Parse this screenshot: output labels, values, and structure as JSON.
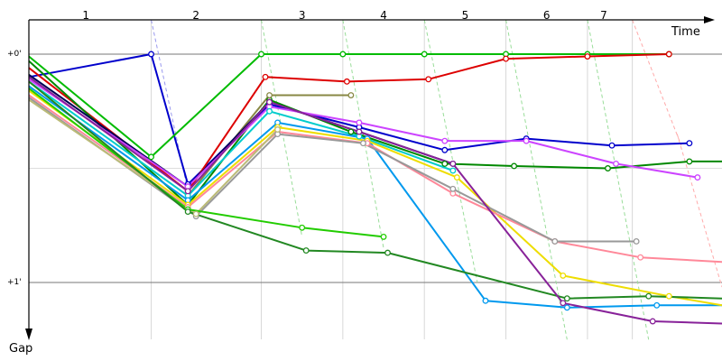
{
  "chart_data": {
    "type": "line",
    "xlabel": "Time",
    "ylabel": "Gap",
    "lap_labels": [
      "1",
      "2",
      "3",
      "4",
      "5",
      "6",
      "7"
    ],
    "y_tick_labels": [
      "+0'",
      "+1'"
    ],
    "y_ticks": [
      0,
      1
    ],
    "ylim": [
      -0.08,
      1.25
    ],
    "xlim": [
      0,
      8.5
    ],
    "grid": true,
    "lap_line_positions": [
      1.5,
      2.85,
      3.85,
      4.85,
      5.85,
      6.85,
      7.4
    ],
    "series": [
      {
        "color": "#0000cc",
        "points": [
          [
            0,
            0.1
          ],
          [
            1.5,
            0
          ],
          [
            1.95,
            0.57
          ],
          [
            2.95,
            0.22
          ],
          [
            4.05,
            0.32
          ],
          [
            5.1,
            0.42
          ],
          [
            6.1,
            0.37
          ],
          [
            7.15,
            0.4
          ],
          [
            8.1,
            0.39
          ]
        ]
      },
      {
        "color": "#00bb00",
        "points": [
          [
            0,
            0.01
          ],
          [
            1.5,
            0.45
          ],
          [
            2.85,
            0
          ],
          [
            3.85,
            0
          ],
          [
            4.85,
            0
          ],
          [
            5.85,
            0
          ],
          [
            6.85,
            0
          ],
          [
            7.85,
            0
          ]
        ]
      },
      {
        "color": "#dd0000",
        "points": [
          [
            0,
            0.06
          ],
          [
            1.95,
            0.6
          ],
          [
            2.9,
            0.1
          ],
          [
            3.9,
            0.12
          ],
          [
            4.9,
            0.11
          ],
          [
            5.85,
            0.02
          ],
          [
            6.85,
            0.01
          ],
          [
            7.85,
            0
          ]
        ]
      },
      {
        "color": "#008800",
        "points": [
          [
            0,
            0.03
          ],
          [
            1.95,
            0.66
          ],
          [
            2.95,
            0.2
          ],
          [
            3.95,
            0.34
          ],
          [
            5.1,
            0.48
          ],
          [
            5.95,
            0.49
          ],
          [
            7.1,
            0.5
          ],
          [
            8.1,
            0.47
          ],
          [
            8.5,
            0.47
          ]
        ]
      },
      {
        "color": "#888844",
        "points": [
          [
            1.95,
            0.62
          ],
          [
            2.95,
            0.18
          ],
          [
            3.95,
            0.18
          ]
        ]
      },
      {
        "color": "#000055",
        "points": [
          [
            0,
            0.09
          ],
          [
            1.95,
            0.58
          ],
          [
            2.95,
            0.21
          ],
          [
            4.05,
            0.34
          ],
          [
            5.2,
            0.48
          ]
        ]
      },
      {
        "color": "#cc44ff",
        "points": [
          [
            0,
            0.11
          ],
          [
            1.95,
            0.58
          ],
          [
            2.95,
            0.23
          ],
          [
            4.05,
            0.3
          ],
          [
            5.1,
            0.38
          ],
          [
            6.1,
            0.38
          ],
          [
            7.2,
            0.48
          ],
          [
            8.2,
            0.54
          ]
        ]
      },
      {
        "color": "#00cccc",
        "points": [
          [
            0,
            0.12
          ],
          [
            1.95,
            0.62
          ],
          [
            2.95,
            0.25
          ],
          [
            4.05,
            0.36
          ],
          [
            5.2,
            0.51
          ]
        ]
      },
      {
        "color": "#0099ee",
        "points": [
          [
            0,
            0.14
          ],
          [
            1.95,
            0.64
          ],
          [
            3.05,
            0.3
          ],
          [
            4.15,
            0.37
          ],
          [
            5.6,
            1.08
          ],
          [
            6.6,
            1.11
          ],
          [
            7.7,
            1.1
          ],
          [
            8.5,
            1.1
          ]
        ]
      },
      {
        "color": "#eedd00",
        "points": [
          [
            0,
            0.16
          ],
          [
            1.95,
            0.66
          ],
          [
            3.05,
            0.32
          ],
          [
            4.15,
            0.38
          ],
          [
            5.25,
            0.54
          ],
          [
            6.55,
            0.97
          ],
          [
            7.85,
            1.06
          ],
          [
            8.5,
            1.1
          ]
        ]
      },
      {
        "color": "#ff8899",
        "points": [
          [
            0,
            0.18
          ],
          [
            1.95,
            0.67
          ],
          [
            3.05,
            0.34
          ],
          [
            4.15,
            0.39
          ],
          [
            5.2,
            0.61
          ],
          [
            6.45,
            0.82
          ],
          [
            7.5,
            0.89
          ],
          [
            8.5,
            0.91
          ]
        ]
      },
      {
        "color": "#999999",
        "points": [
          [
            0,
            0.19
          ],
          [
            2.05,
            0.71
          ],
          [
            3.05,
            0.35
          ],
          [
            4.1,
            0.39
          ],
          [
            5.2,
            0.59
          ],
          [
            6.45,
            0.82
          ],
          [
            7.45,
            0.82
          ]
        ]
      },
      {
        "color": "#bbbb77",
        "points": [
          [
            0,
            0.2
          ],
          [
            2.05,
            0.7
          ],
          [
            3.05,
            0.33
          ]
        ]
      },
      {
        "color": "#22cc00",
        "points": [
          [
            0,
            0.15
          ],
          [
            1.95,
            0.68
          ],
          [
            3.35,
            0.76
          ],
          [
            4.35,
            0.8
          ]
        ]
      },
      {
        "color": "#228822",
        "points": [
          [
            0,
            0.12
          ],
          [
            1.95,
            0.69
          ],
          [
            3.4,
            0.86
          ],
          [
            4.4,
            0.87
          ],
          [
            6.6,
            1.07
          ],
          [
            7.6,
            1.06
          ],
          [
            8.5,
            1.07
          ]
        ]
      },
      {
        "color": "#882299",
        "points": [
          [
            0,
            0.1
          ],
          [
            1.95,
            0.6
          ],
          [
            2.95,
            0.21
          ],
          [
            4.05,
            0.34
          ],
          [
            5.2,
            0.48
          ],
          [
            6.55,
            1.09
          ],
          [
            7.65,
            1.17
          ],
          [
            8.5,
            1.18
          ]
        ]
      }
    ],
    "retire_lines": [
      {
        "color": "#9999ee",
        "points": [
          [
            1.5,
            -0.15
          ],
          [
            1.95,
            0.6
          ]
        ]
      },
      {
        "color": "#99dd99",
        "points": [
          [
            2.85,
            -0.15
          ],
          [
            3.35,
            0.8
          ]
        ]
      },
      {
        "color": "#99dd99",
        "points": [
          [
            3.85,
            -0.15
          ],
          [
            4.35,
            0.85
          ]
        ]
      },
      {
        "color": "#99dd99",
        "points": [
          [
            4.85,
            -0.15
          ],
          [
            5.5,
            1.0
          ]
        ]
      },
      {
        "color": "#99dd99",
        "points": [
          [
            5.85,
            -0.15
          ],
          [
            6.6,
            1.25
          ]
        ]
      },
      {
        "color": "#99dd99",
        "points": [
          [
            6.85,
            -0.15
          ],
          [
            7.6,
            1.25
          ]
        ]
      },
      {
        "color": "#ffaaaa",
        "points": [
          [
            7.4,
            -0.15
          ],
          [
            8.0,
            0.4
          ]
        ]
      },
      {
        "color": "#ffaaaa",
        "points": [
          [
            7.95,
            0.35
          ],
          [
            8.5,
            1.02
          ]
        ]
      }
    ]
  }
}
